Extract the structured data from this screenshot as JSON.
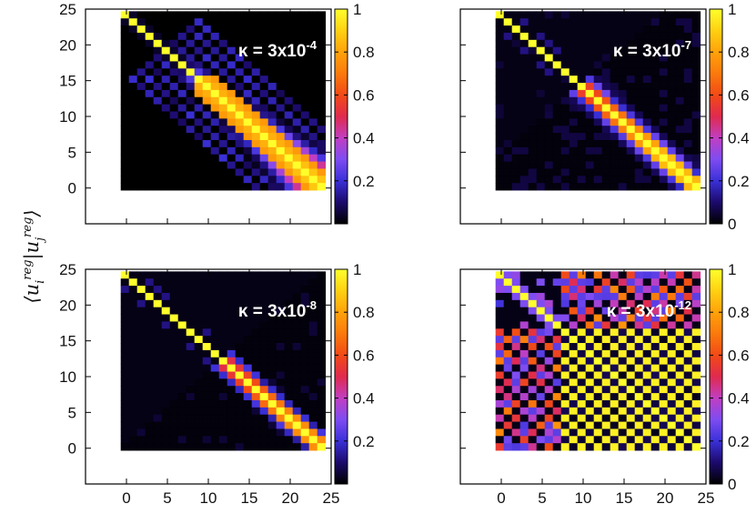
{
  "figure": {
    "ylabel": "⟨u_i^reg | u_j^reg⟩",
    "ylabel_parts": {
      "open": "⟨",
      "u": "u",
      "i": "i",
      "reg": "reg",
      "bar": "|",
      "j": "j",
      "close": "⟩"
    }
  },
  "colorbar": {
    "left_ticks": [
      {
        "value": 1,
        "label": "1"
      },
      {
        "value": 0.8,
        "label": "0.8"
      },
      {
        "value": 0.6,
        "label": "0.6"
      },
      {
        "value": 0.4,
        "label": "0.4"
      },
      {
        "value": 0.2,
        "label": "0.2"
      }
    ],
    "right_ticks": [
      {
        "value": 1,
        "label": "1"
      },
      {
        "value": 0.8,
        "label": "0.8"
      },
      {
        "value": 0.6,
        "label": "0.6"
      },
      {
        "value": 0.4,
        "label": "0.4"
      },
      {
        "value": 0.2,
        "label": "0.2"
      },
      {
        "value": 0,
        "label": "0"
      }
    ],
    "stops": [
      {
        "v": 0.0,
        "color": "#000000"
      },
      {
        "v": 0.1,
        "color": "#1c0a6c"
      },
      {
        "v": 0.2,
        "color": "#3a30d8"
      },
      {
        "v": 0.3,
        "color": "#7e4cf2"
      },
      {
        "v": 0.4,
        "color": "#c13ec2"
      },
      {
        "v": 0.5,
        "color": "#e02a4e"
      },
      {
        "v": 0.6,
        "color": "#f24a16"
      },
      {
        "v": 0.7,
        "color": "#fb7a0c"
      },
      {
        "v": 0.8,
        "color": "#ffa20a"
      },
      {
        "v": 0.9,
        "color": "#ffd112"
      },
      {
        "v": 1.0,
        "color": "#ffff2c"
      }
    ]
  },
  "chart_data": [
    {
      "type": "heatmap",
      "id": "tl",
      "title_prefix": "κ = 3x10",
      "title_exp": "-4",
      "x_ticks": [],
      "y_ticks": [
        0,
        5,
        10,
        15,
        20,
        25
      ],
      "xlim": [
        -5,
        25
      ],
      "ylim": [
        -5,
        25
      ],
      "matrix_size": 25,
      "model": "kappa4",
      "colorbar_side": "left"
    },
    {
      "type": "heatmap",
      "id": "tr",
      "title_prefix": "κ = 3x10",
      "title_exp": "-7",
      "x_ticks": [],
      "y_ticks": [],
      "xlim": [
        -5,
        25
      ],
      "ylim": [
        -5,
        25
      ],
      "matrix_size": 25,
      "model": "kappa7",
      "colorbar_side": "right"
    },
    {
      "type": "heatmap",
      "id": "bl",
      "title_prefix": "κ = 3x10",
      "title_exp": "-8",
      "x_ticks": [
        0,
        5,
        10,
        15,
        20,
        25
      ],
      "y_ticks": [
        0,
        5,
        10,
        15,
        20,
        25
      ],
      "xlim": [
        -5,
        25
      ],
      "ylim": [
        -5,
        25
      ],
      "matrix_size": 25,
      "model": "kappa8",
      "colorbar_side": "left"
    },
    {
      "type": "heatmap",
      "id": "br",
      "title_prefix": "κ = 3x10",
      "title_exp": "-12",
      "x_ticks": [
        0,
        5,
        10,
        15,
        20,
        25
      ],
      "y_ticks": [],
      "xlim": [
        -5,
        25
      ],
      "ylim": [
        -5,
        25
      ],
      "matrix_size": 25,
      "model": "kappa12",
      "colorbar_side": "right"
    }
  ]
}
